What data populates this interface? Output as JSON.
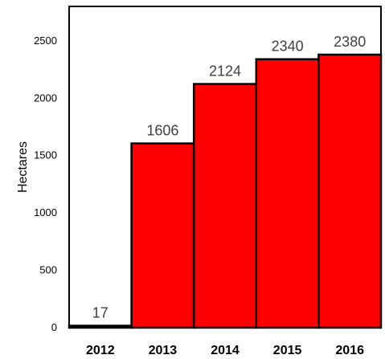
{
  "chart_data": {
    "type": "bar",
    "categories": [
      "2012",
      "2013",
      "2014",
      "2015",
      "2016"
    ],
    "values": [
      17,
      1606,
      2124,
      2340,
      2380
    ],
    "data_labels": [
      "17",
      "1606",
      "2124",
      "2340",
      "2380"
    ],
    "yticks": [
      0,
      500,
      1000,
      1500,
      2000,
      2500
    ],
    "ylim": [
      0,
      2800
    ],
    "title": "",
    "xlabel": "",
    "ylabel": "Hectares",
    "grid": false,
    "bar_color": "#ff0000",
    "bar_edge_color": "#000000"
  }
}
